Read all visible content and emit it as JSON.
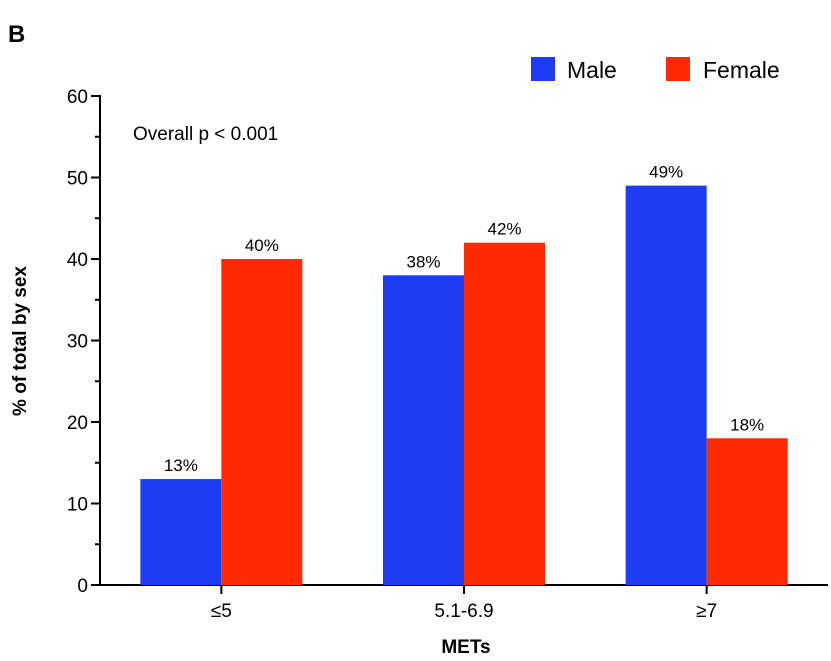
{
  "panel_label": "B",
  "chart_data": {
    "type": "bar",
    "categories": [
      "≤5",
      "5.1-6.9",
      "≥7"
    ],
    "series": [
      {
        "name": "Male",
        "color": "#1f3cf5",
        "values": [
          13,
          38,
          49
        ],
        "labels": [
          "13%",
          "38%",
          "49%"
        ]
      },
      {
        "name": "Female",
        "color": "#ff2a00",
        "values": [
          40,
          42,
          18
        ],
        "labels": [
          "40%",
          "42%",
          "18%"
        ]
      }
    ],
    "xlabel": "METs",
    "ylabel": "% of total by sex",
    "ylim": [
      0,
      60
    ],
    "yticks": [
      "0",
      "10",
      "20",
      "30",
      "40",
      "50",
      "60"
    ],
    "annotation": "Overall p < 0.001",
    "legend_position": "top-right",
    "grid": false
  }
}
